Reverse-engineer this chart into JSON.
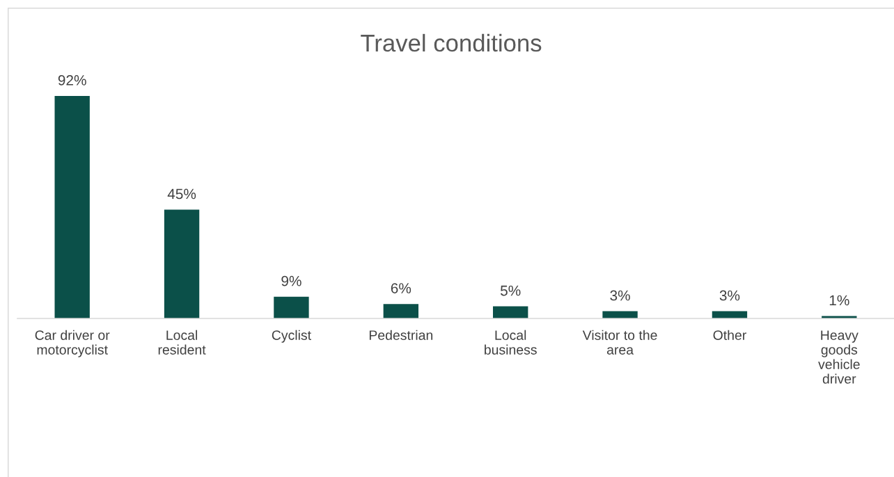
{
  "chart_data": {
    "type": "bar",
    "title": "Travel conditions",
    "categories": [
      "Car driver or\nmotorcyclist",
      "Local\nresident",
      "Cyclist",
      "Pedestrian",
      "Local\nbusiness",
      "Visitor to the\narea",
      "Other",
      "Heavy\ngoods\nvehicle\ndriver"
    ],
    "values": [
      92,
      45,
      9,
      6,
      5,
      3,
      3,
      1
    ],
    "value_labels": [
      "92%",
      "45%",
      "9%",
      "6%",
      "5%",
      "3%",
      "3%",
      "1%"
    ],
    "color": "#0b5049",
    "grid": false,
    "legend": false
  }
}
